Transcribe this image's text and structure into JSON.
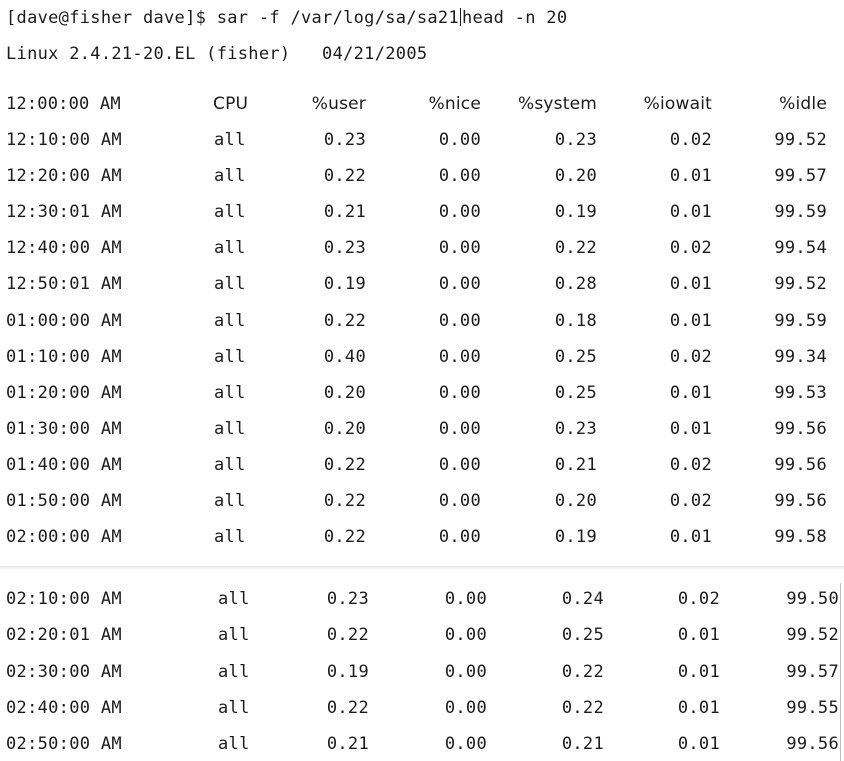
{
  "terminal": {
    "prompt": "[dave@fisher dave]$ sar -f /var/log/sa/sa21",
    "prompt_tail": "head -n 20",
    "system_line": "Linux 2.4.21-20.EL (fisher)   04/21/2005"
  },
  "table": {
    "header": {
      "time": "12:00:00 AM",
      "cpu": "CPU",
      "user": "%user",
      "nice": "%nice",
      "system": "%system",
      "iowait": "%iowait",
      "idle": "%idle"
    },
    "rows": [
      {
        "time": "12:10:00 AM",
        "cpu": "all",
        "user": "0.23",
        "nice": "0.00",
        "system": "0.23",
        "iowait": "0.02",
        "idle": "99.52"
      },
      {
        "time": "12:20:00 AM",
        "cpu": "all",
        "user": "0.22",
        "nice": "0.00",
        "system": "0.20",
        "iowait": "0.01",
        "idle": "99.57"
      },
      {
        "time": "12:30:01 AM",
        "cpu": "all",
        "user": "0.21",
        "nice": "0.00",
        "system": "0.19",
        "iowait": "0.01",
        "idle": "99.59"
      },
      {
        "time": "12:40:00 AM",
        "cpu": "all",
        "user": "0.23",
        "nice": "0.00",
        "system": "0.22",
        "iowait": "0.02",
        "idle": "99.54"
      },
      {
        "time": "12:50:01 AM",
        "cpu": "all",
        "user": "0.19",
        "nice": "0.00",
        "system": "0.28",
        "iowait": "0.01",
        "idle": "99.52"
      },
      {
        "time": "01:00:00 AM",
        "cpu": "all",
        "user": "0.22",
        "nice": "0.00",
        "system": "0.18",
        "iowait": "0.01",
        "idle": "99.59"
      },
      {
        "time": "01:10:00 AM",
        "cpu": "all",
        "user": "0.40",
        "nice": "0.00",
        "system": "0.25",
        "iowait": "0.02",
        "idle": "99.34"
      },
      {
        "time": "01:20:00 AM",
        "cpu": "all",
        "user": "0.20",
        "nice": "0.00",
        "system": "0.25",
        "iowait": "0.01",
        "idle": "99.53"
      },
      {
        "time": "01:30:00 AM",
        "cpu": "all",
        "user": "0.20",
        "nice": "0.00",
        "system": "0.23",
        "iowait": "0.01",
        "idle": "99.56"
      },
      {
        "time": "01:40:00 AM",
        "cpu": "all",
        "user": "0.22",
        "nice": "0.00",
        "system": "0.21",
        "iowait": "0.02",
        "idle": "99.56"
      },
      {
        "time": "01:50:00 AM",
        "cpu": "all",
        "user": "0.22",
        "nice": "0.00",
        "system": "0.20",
        "iowait": "0.02",
        "idle": "99.56"
      },
      {
        "time": "02:00:00 AM",
        "cpu": "all",
        "user": "0.22",
        "nice": "0.00",
        "system": "0.19",
        "iowait": "0.01",
        "idle": "99.58"
      },
      {
        "time": "02:10:00 AM",
        "cpu": "all",
        "user": "0.23",
        "nice": "0.00",
        "system": "0.24",
        "iowait": "0.02",
        "idle": "99.50"
      },
      {
        "time": "02:20:01 AM",
        "cpu": "all",
        "user": "0.22",
        "nice": "0.00",
        "system": "0.25",
        "iowait": "0.01",
        "idle": "99.52"
      },
      {
        "time": "02:30:00 AM",
        "cpu": "all",
        "user": "0.19",
        "nice": "0.00",
        "system": "0.22",
        "iowait": "0.01",
        "idle": "99.57"
      },
      {
        "time": "02:40:00 AM",
        "cpu": "all",
        "user": "0.22",
        "nice": "0.00",
        "system": "0.22",
        "iowait": "0.01",
        "idle": "99.55"
      },
      {
        "time": "02:50:00 AM",
        "cpu": "all",
        "user": "0.21",
        "nice": "0.00",
        "system": "0.21",
        "iowait": "0.01",
        "idle": "99.56"
      }
    ]
  }
}
